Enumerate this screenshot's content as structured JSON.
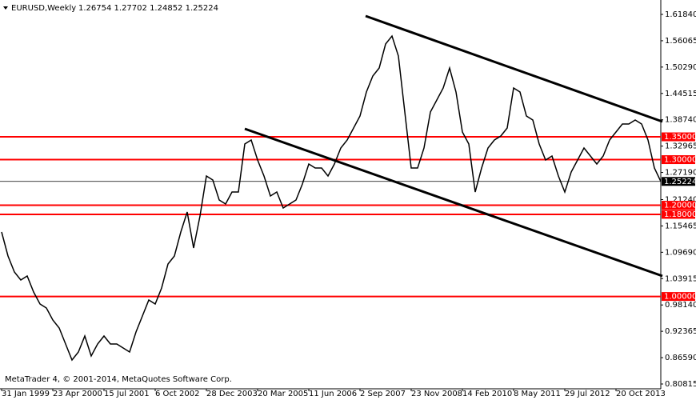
{
  "chart_data": {
    "type": "line",
    "title": "EURUSD,Weekly",
    "quote_text": "1.26754 1.27702 1.24852 1.25224",
    "footer": "MetaTrader 4, © 2001-2014, MetaQuotes Software Corp.",
    "categories": [
      "31 Jan 1999",
      null,
      null,
      null,
      null,
      null,
      null,
      null,
      "23 Apr 2000",
      null,
      null,
      null,
      null,
      null,
      null,
      null,
      "15 Jul 2001",
      null,
      null,
      null,
      null,
      null,
      null,
      null,
      "6 Oct 2002",
      null,
      null,
      null,
      null,
      null,
      null,
      null,
      "28 Dec 2003",
      null,
      null,
      null,
      null,
      null,
      null,
      null,
      "20 Mar 2005",
      null,
      null,
      null,
      null,
      null,
      null,
      null,
      "11 Jun 2006",
      null,
      null,
      null,
      null,
      null,
      null,
      null,
      "2 Sep 2007",
      null,
      null,
      null,
      null,
      null,
      null,
      null,
      "23 Nov 2008",
      null,
      null,
      null,
      null,
      null,
      null,
      null,
      "14 Feb 2010",
      null,
      null,
      null,
      null,
      null,
      null,
      null,
      "8 May 2011",
      null,
      null,
      null,
      null,
      null,
      null,
      null,
      "29 Jul 2012",
      null,
      null,
      null,
      null,
      null,
      null,
      null,
      "20 Oct 2013",
      null,
      null,
      null,
      null,
      null,
      null,
      null
    ],
    "series": [
      {
        "name": "EURUSD,Weekly",
        "color": "#000000",
        "values": [
          1.1414,
          1.0888,
          1.0537,
          1.0362,
          1.0449,
          1.0098,
          0.9835,
          0.9748,
          0.9485,
          0.9309,
          0.8958,
          0.8608,
          0.8783,
          0.9134,
          0.8695,
          0.8958,
          0.9134,
          0.8958,
          0.8958,
          0.8871,
          0.8783,
          0.9222,
          0.9572,
          0.9923,
          0.9835,
          1.0186,
          1.0712,
          1.0888,
          1.1414,
          1.1852,
          1.1063,
          1.1764,
          1.2641,
          1.2554,
          1.2115,
          1.2028,
          1.2291,
          1.2291,
          1.3343,
          1.3431,
          1.2992,
          1.2641,
          1.2203,
          1.2291,
          1.194,
          1.2028,
          1.2115,
          1.2466,
          1.2904,
          1.2817,
          1.2817,
          1.2641,
          1.2904,
          1.3255,
          1.3431,
          1.3694,
          1.3957,
          1.4483,
          1.4834,
          1.5009,
          1.5535,
          1.571,
          1.5272,
          1.4044,
          1.2817,
          1.2817,
          1.3255,
          1.4044,
          1.4307,
          1.4571,
          1.5009,
          1.4483,
          1.3606,
          1.3343,
          1.2291,
          1.2817,
          1.3255,
          1.3431,
          1.3518,
          1.3694,
          1.4571,
          1.4483,
          1.3957,
          1.3869,
          1.3343,
          1.2992,
          1.308,
          1.2641,
          1.2291,
          1.2729,
          1.2992,
          1.3255,
          1.308,
          1.2904,
          1.308,
          1.3431,
          1.3606,
          1.3781,
          1.3781,
          1.3869,
          1.3781,
          1.3431,
          1.2817,
          1.25224
        ]
      }
    ],
    "ylim": [
      0.7976,
      1.6447
    ],
    "yticks": [
      {
        "value": 1.6184,
        "label": "1.61840"
      },
      1.56065,
      {
        "value": 1.5029,
        "label": "1.50290"
      },
      1.44515,
      {
        "value": 1.3874,
        "label": "1.38740"
      },
      1.32965,
      {
        "value": 1.2719,
        "label": "1.27190"
      },
      {
        "value": 1.2124,
        "label": "1.21240"
      },
      1.15465,
      {
        "value": 1.0969,
        "label": "1.09690"
      },
      1.03915,
      {
        "value": 0.9814,
        "label": "0.98140"
      },
      0.92365,
      {
        "value": 0.8659,
        "label": "0.86590"
      },
      0.80815
    ],
    "levels": [
      {
        "value": 1.35,
        "label": "1.35000"
      },
      {
        "value": 1.3,
        "label": "1.30000"
      },
      {
        "value": 1.2,
        "label": "1.20000"
      },
      {
        "value": 1.18,
        "label": "1.18000"
      },
      {
        "value": 1,
        "label": "1.00000"
      }
    ],
    "level_color": "#ff0000",
    "current_price": 1.25224
  }
}
